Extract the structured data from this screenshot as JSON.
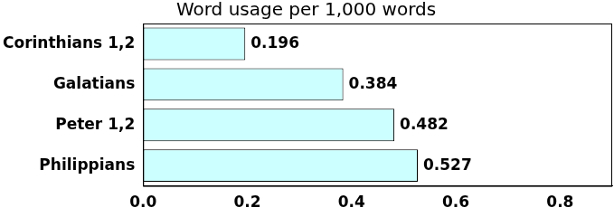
{
  "chart_data": {
    "type": "bar",
    "orientation": "horizontal",
    "title": "Word usage per 1,000 words",
    "categories": [
      "Corinthians 1,2",
      "Galatians",
      "Peter 1,2",
      "Philippians"
    ],
    "values": [
      0.196,
      0.384,
      0.482,
      0.527
    ],
    "color": "#ccffff",
    "xlim": [
      0,
      0.9
    ],
    "xticks": [
      {
        "value": 0,
        "label": "0.0"
      },
      0.2,
      0.4,
      0.6,
      0.8
    ],
    "grid": false,
    "data_labels": true
  }
}
